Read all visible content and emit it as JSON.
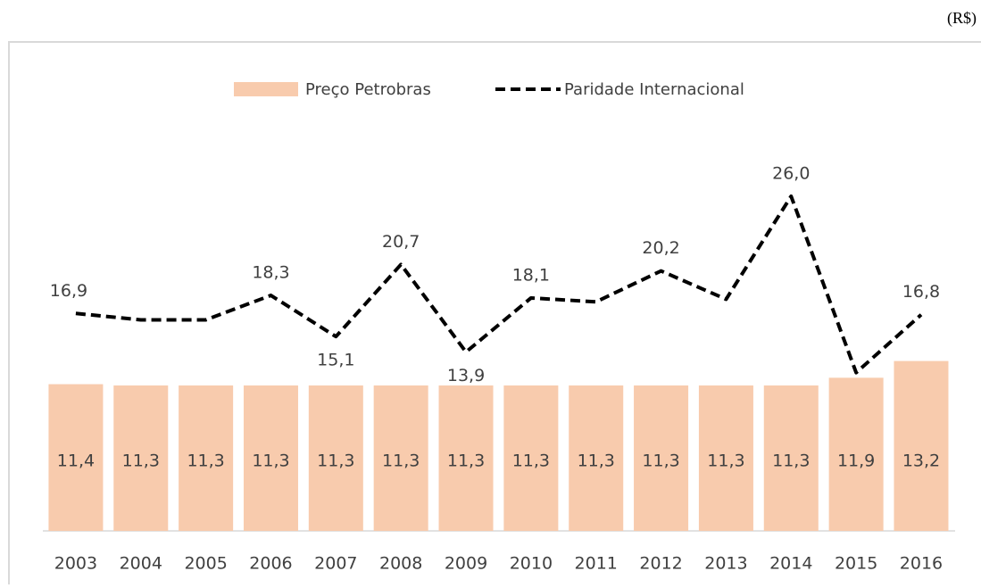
{
  "chart_data": {
    "type": "bar-line",
    "unit": "(R$)",
    "categories": [
      "2003",
      "2004",
      "2005",
      "2006",
      "2007",
      "2008",
      "2009",
      "2010",
      "2011",
      "2012",
      "2013",
      "2014",
      "2015",
      "2016"
    ],
    "series": [
      {
        "name": "Preço Petrobras",
        "type": "bar",
        "color": "#f8cbad",
        "values": [
          11.4,
          11.3,
          11.3,
          11.3,
          11.3,
          11.3,
          11.3,
          11.3,
          11.3,
          11.3,
          11.3,
          11.3,
          11.9,
          13.2
        ],
        "value_labels": [
          "11,4",
          "11,3",
          "11,3",
          "11,3",
          "11,3",
          "11,3",
          "11,3",
          "11,3",
          "11,3",
          "11,3",
          "11,3",
          "11,3",
          "11,9",
          "13,2"
        ]
      },
      {
        "name": "Paridade Internacional",
        "type": "line",
        "color": "#000000",
        "dash": true,
        "values": [
          16.9,
          16.4,
          16.4,
          18.3,
          15.1,
          20.7,
          13.9,
          18.1,
          17.8,
          20.2,
          18.0,
          26.0,
          12.3,
          16.8
        ],
        "value_labels": [
          "16,9",
          null,
          null,
          "18,3",
          "15,1",
          "20,7",
          "13,9",
          "18,1",
          null,
          "20,2",
          null,
          "26,0",
          null,
          "16,8"
        ]
      }
    ]
  }
}
